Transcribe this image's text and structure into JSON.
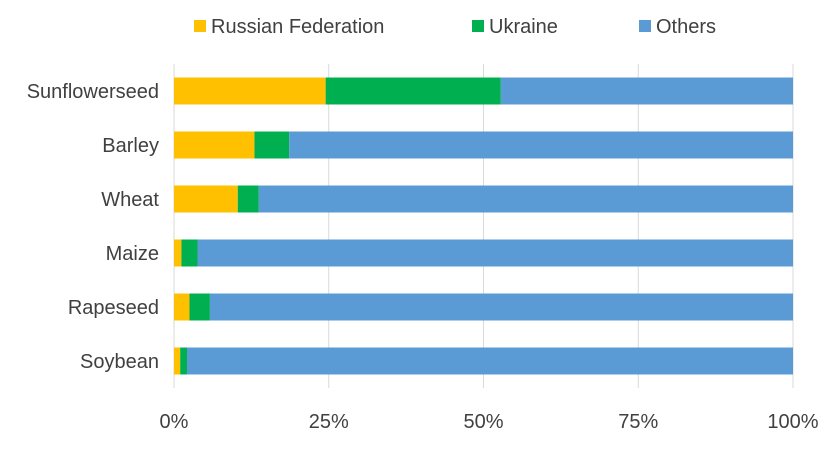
{
  "chart_data": {
    "type": "bar",
    "orientation": "horizontal",
    "stacked": true,
    "percent": true,
    "categories": [
      "Sunflowerseed",
      "Barley",
      "Wheat",
      "Maize",
      "Rapeseed",
      "Soybean"
    ],
    "series": [
      {
        "name": "Russian Federation",
        "color": "#FFC000",
        "values": [
          24.5,
          13.0,
          10.3,
          1.2,
          2.5,
          1.0
        ]
      },
      {
        "name": "Ukraine",
        "color": "#00B050",
        "values": [
          28.3,
          5.6,
          3.4,
          2.6,
          3.3,
          1.1
        ]
      },
      {
        "name": "Others",
        "color": "#5B9BD5",
        "values": [
          47.2,
          81.4,
          86.3,
          96.2,
          94.2,
          97.9
        ]
      }
    ],
    "xlim": [
      0,
      100
    ],
    "xticks": [
      "0%",
      "25%",
      "50%",
      "75%",
      "100%"
    ],
    "xlabel": "",
    "ylabel": "",
    "title": "",
    "legend": "top",
    "grid": true
  }
}
